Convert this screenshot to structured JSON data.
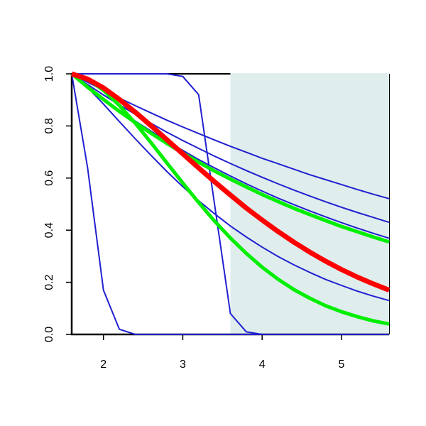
{
  "chart_data": {
    "type": "line",
    "x": [
      1.6,
      1.8,
      2.0,
      2.2,
      2.4,
      2.6,
      2.8,
      3.0,
      3.2,
      3.4,
      3.6,
      3.8,
      4.0,
      4.2,
      4.4,
      4.6,
      4.8,
      5.0,
      5.2,
      5.4,
      5.6
    ],
    "xlim": [
      1.6,
      5.6
    ],
    "ylim": [
      0,
      1
    ],
    "xticks": [
      2,
      3,
      4,
      5
    ],
    "yticks": [
      {
        "value": 0,
        "label": "0.0"
      },
      {
        "value": 0.2,
        "label": "0.2"
      },
      {
        "value": 0.4,
        "label": "0.4"
      },
      {
        "value": 0.6,
        "label": "0.6"
      },
      {
        "value": 0.8,
        "label": "0.8"
      },
      {
        "value": 1,
        "label": "1.0"
      }
    ],
    "shade_x": [
      3.6,
      5.6
    ],
    "shade_color": "#dfeded",
    "series": [
      {
        "color": "#2020d0",
        "line_width": 2,
        "values": [
          1,
          0.64,
          0.17,
          0.02,
          0,
          0,
          0,
          0,
          0,
          0,
          0,
          0,
          0,
          0,
          0,
          0,
          0,
          0,
          0,
          0,
          0
        ]
      },
      {
        "color": "#2020d0",
        "line_width": 2,
        "values": [
          1,
          1,
          1,
          1,
          1,
          1,
          1,
          0.99,
          0.92,
          0.5,
          0.08,
          0.01,
          0,
          0,
          0,
          0,
          0,
          0,
          0,
          0,
          0
        ]
      },
      {
        "color": "#2020d0",
        "line_width": 2,
        "values": [
          1,
          0.968,
          0.937,
          0.907,
          0.878,
          0.85,
          0.822,
          0.796,
          0.771,
          0.746,
          0.722,
          0.699,
          0.676,
          0.655,
          0.634,
          0.613,
          0.594,
          0.575,
          0.556,
          0.538,
          0.521
        ]
      },
      {
        "color": "#2020d0",
        "line_width": 2,
        "values": [
          1,
          0.959,
          0.919,
          0.881,
          0.845,
          0.81,
          0.776,
          0.744,
          0.714,
          0.684,
          0.656,
          0.629,
          0.603,
          0.578,
          0.554,
          0.531,
          0.509,
          0.488,
          0.468,
          0.449,
          0.43
        ]
      },
      {
        "color": "#2020d0",
        "line_width": 2,
        "values": [
          1,
          0.951,
          0.905,
          0.861,
          0.819,
          0.78,
          0.742,
          0.706,
          0.671,
          0.639,
          0.608,
          0.578,
          0.55,
          0.523,
          0.498,
          0.474,
          0.451,
          0.429,
          0.408,
          0.388,
          0.369
        ]
      },
      {
        "color": "#2020d0",
        "line_width": 2,
        "values": [
          1,
          0.948,
          0.884,
          0.817,
          0.751,
          0.687,
          0.625,
          0.567,
          0.513,
          0.463,
          0.416,
          0.374,
          0.335,
          0.299,
          0.267,
          0.238,
          0.211,
          0.188,
          0.166,
          0.147,
          0.13
        ]
      },
      {
        "color": "#00ee00",
        "line_width": 5,
        "values": [
          1,
          0.949,
          0.902,
          0.856,
          0.813,
          0.772,
          0.733,
          0.696,
          0.661,
          0.627,
          0.596,
          0.566,
          0.537,
          0.51,
          0.484,
          0.46,
          0.437,
          0.414,
          0.394,
          0.374,
          0.355
        ]
      },
      {
        "color": "#00ee00",
        "line_width": 5,
        "values": [
          1,
          0.98,
          0.937,
          0.879,
          0.811,
          0.736,
          0.658,
          0.581,
          0.506,
          0.435,
          0.37,
          0.311,
          0.258,
          0.212,
          0.172,
          0.139,
          0.11,
          0.087,
          0.068,
          0.052,
          0.04
        ]
      },
      {
        "color": "#ff0000",
        "line_width": 7,
        "values": [
          1,
          0.98,
          0.946,
          0.902,
          0.853,
          0.801,
          0.747,
          0.693,
          0.639,
          0.586,
          0.535,
          0.485,
          0.439,
          0.395,
          0.354,
          0.316,
          0.281,
          0.249,
          0.22,
          0.194,
          0.17
        ]
      }
    ]
  }
}
